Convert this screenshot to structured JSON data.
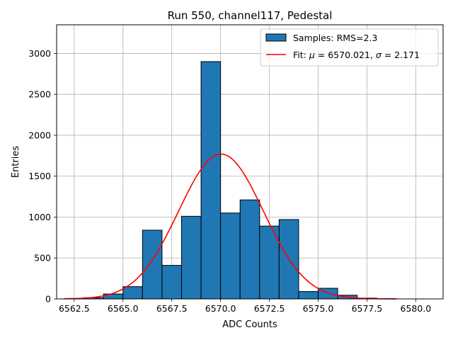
{
  "chart_data": {
    "type": "bar",
    "title": "Run 550, channel117, Pedestal",
    "xlabel": "ADC Counts",
    "ylabel": "Entries",
    "xlim": [
      6561.6,
      6581.4
    ],
    "ylim": [
      0,
      3350
    ],
    "xticks": [
      6562.5,
      6565.0,
      6567.5,
      6570.0,
      6572.5,
      6575.0,
      6577.5,
      6580.0
    ],
    "xtick_labels": [
      "6562.5",
      "6565.0",
      "6567.5",
      "6570.0",
      "6572.5",
      "6575.0",
      "6577.5",
      "6580.0"
    ],
    "yticks": [
      0,
      500,
      1000,
      1500,
      2000,
      2500,
      3000
    ],
    "ytick_labels": [
      "0",
      "500",
      "1000",
      "1500",
      "2000",
      "2500",
      "3000"
    ],
    "grid": true,
    "bins": [
      {
        "start": 6562,
        "end": 6563,
        "count": 5
      },
      {
        "start": 6563,
        "end": 6564,
        "count": 15
      },
      {
        "start": 6564,
        "end": 6565,
        "count": 60
      },
      {
        "start": 6565,
        "end": 6566,
        "count": 150
      },
      {
        "start": 6566,
        "end": 6567,
        "count": 840
      },
      {
        "start": 6567,
        "end": 6568,
        "count": 410
      },
      {
        "start": 6568,
        "end": 6569,
        "count": 1010
      },
      {
        "start": 6569,
        "end": 6570,
        "count": 2900
      },
      {
        "start": 6570,
        "end": 6571,
        "count": 1050
      },
      {
        "start": 6571,
        "end": 6572,
        "count": 1210
      },
      {
        "start": 6572,
        "end": 6573,
        "count": 890
      },
      {
        "start": 6573,
        "end": 6574,
        "count": 970
      },
      {
        "start": 6574,
        "end": 6575,
        "count": 90
      },
      {
        "start": 6575,
        "end": 6576,
        "count": 130
      },
      {
        "start": 6576,
        "end": 6577,
        "count": 45
      },
      {
        "start": 6577,
        "end": 6578,
        "count": 10
      },
      {
        "start": 6578,
        "end": 6579,
        "count": 3
      }
    ],
    "fit": {
      "mu": 6570.021,
      "sigma": 2.171,
      "amplitude": 1770,
      "x_range": [
        6562,
        6579
      ]
    },
    "legend": {
      "position": "upper right",
      "entries": [
        {
          "label": "Samples: RMS=2.3",
          "kind": "patch"
        },
        {
          "label_prefix": "Fit: ",
          "mu_symbol": "μ",
          "mu_text": " = 6570.021, ",
          "sigma_symbol": "σ",
          "sigma_text": " = 2.171",
          "kind": "line"
        }
      ]
    },
    "colors": {
      "bar_fill": "#1f77b4",
      "bar_edge": "#000000",
      "fit_line": "#ff0000",
      "grid": "#b0b0b0"
    }
  }
}
